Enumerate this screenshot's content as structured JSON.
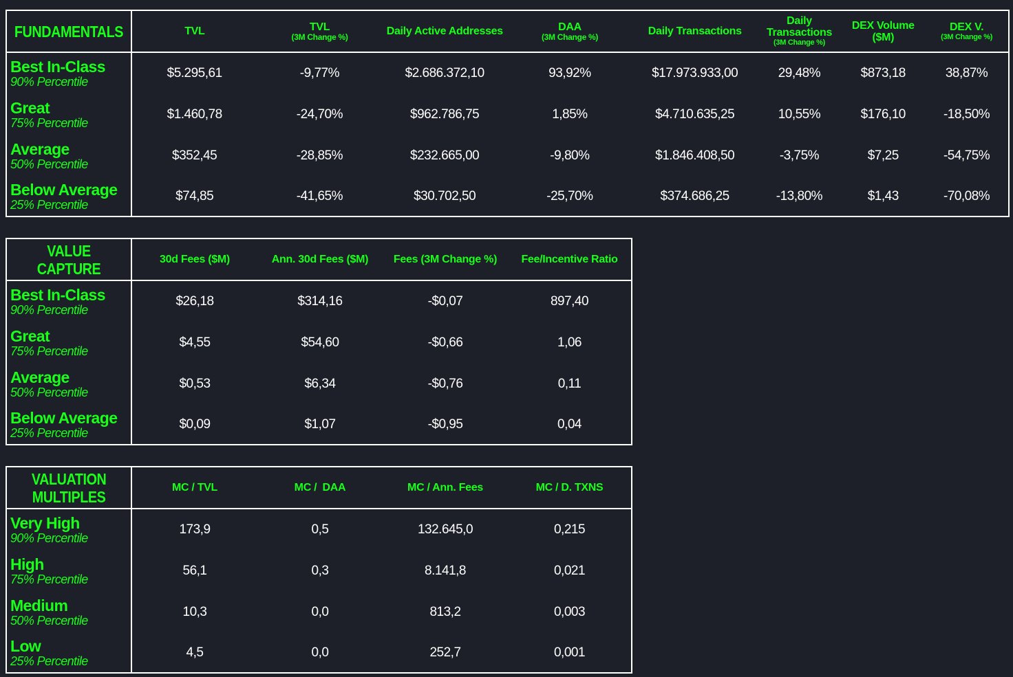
{
  "accent_color": "#19ff19",
  "background_color": "#1d1f29",
  "fundamentals": {
    "title": "FUNDAMENTALS",
    "columns": [
      {
        "main": "TVL",
        "sub": ""
      },
      {
        "main": "TVL",
        "sub": "(3M Change %)"
      },
      {
        "main": "Daily Active Addresses",
        "sub": ""
      },
      {
        "main": "DAA",
        "sub": "(3M Change %)"
      },
      {
        "main": "Daily Transactions",
        "sub": ""
      },
      {
        "main": "Daily Transactions",
        "sub": "(3M Change %)"
      },
      {
        "main": "DEX Volume ($M)",
        "sub": ""
      },
      {
        "main": "DEX V.",
        "sub": "(3M Change %)"
      }
    ],
    "rows": [
      {
        "label": "Best In-Class",
        "percentile": "90% Percentile",
        "values": [
          "$5.295,61",
          "-9,77%",
          "$2.686.372,10",
          "93,92%",
          "$17.973.933,00",
          "29,48%",
          "$873,18",
          "38,87%"
        ]
      },
      {
        "label": "Great",
        "percentile": "75% Percentile",
        "values": [
          "$1.460,78",
          "-24,70%",
          "$962.786,75",
          "1,85%",
          "$4.710.635,25",
          "10,55%",
          "$176,10",
          "-18,50%"
        ]
      },
      {
        "label": "Average",
        "percentile": "50% Percentile",
        "values": [
          "$352,45",
          "-28,85%",
          "$232.665,00",
          "-9,80%",
          "$1.846.408,50",
          "-3,75%",
          "$7,25",
          "-54,75%"
        ]
      },
      {
        "label": "Below Average",
        "percentile": "25% Percentile",
        "values": [
          "$74,85",
          "-41,65%",
          "$30.702,50",
          "-25,70%",
          "$374.686,25",
          "-13,80%",
          "$1,43",
          "-70,08%"
        ]
      }
    ]
  },
  "value_capture": {
    "title": "VALUE CAPTURE",
    "columns": [
      {
        "main": "30d Fees ($M)",
        "sub": ""
      },
      {
        "main": "Ann. 30d Fees ($M)",
        "sub": ""
      },
      {
        "main": "Fees (3M Change %)",
        "sub": ""
      },
      {
        "main": "Fee/Incentive Ratio",
        "sub": ""
      }
    ],
    "rows": [
      {
        "label": "Best In-Class",
        "percentile": "90% Percentile",
        "values": [
          "$26,18",
          "$314,16",
          "-$0,07",
          "897,40"
        ]
      },
      {
        "label": "Great",
        "percentile": "75% Percentile",
        "values": [
          "$4,55",
          "$54,60",
          "-$0,66",
          "1,06"
        ]
      },
      {
        "label": "Average",
        "percentile": "50% Percentile",
        "values": [
          "$0,53",
          "$6,34",
          "-$0,76",
          "0,11"
        ]
      },
      {
        "label": "Below Average",
        "percentile": "25% Percentile",
        "values": [
          "$0,09",
          "$1,07",
          "-$0,95",
          "0,04"
        ]
      }
    ]
  },
  "valuation_multiples": {
    "title_line1": "VALUATION",
    "title_line2": "MULTIPLES",
    "columns": [
      {
        "main": "MC / TVL",
        "sub": ""
      },
      {
        "main": "MC /  DAA",
        "sub": ""
      },
      {
        "main": "MC / Ann. Fees",
        "sub": ""
      },
      {
        "main": "MC / D. TXNS",
        "sub": ""
      }
    ],
    "rows": [
      {
        "label": "Very High",
        "percentile": "90% Percentile",
        "values": [
          "173,9",
          "0,5",
          "132.645,0",
          "0,215"
        ]
      },
      {
        "label": "High",
        "percentile": "75% Percentile",
        "values": [
          "56,1",
          "0,3",
          "8.141,8",
          "0,021"
        ]
      },
      {
        "label": "Medium",
        "percentile": "50% Percentile",
        "values": [
          "10,3",
          "0,0",
          "813,2",
          "0,003"
        ]
      },
      {
        "label": "Low",
        "percentile": "25% Percentile",
        "values": [
          "4,5",
          "0,0",
          "252,7",
          "0,001"
        ]
      }
    ]
  }
}
